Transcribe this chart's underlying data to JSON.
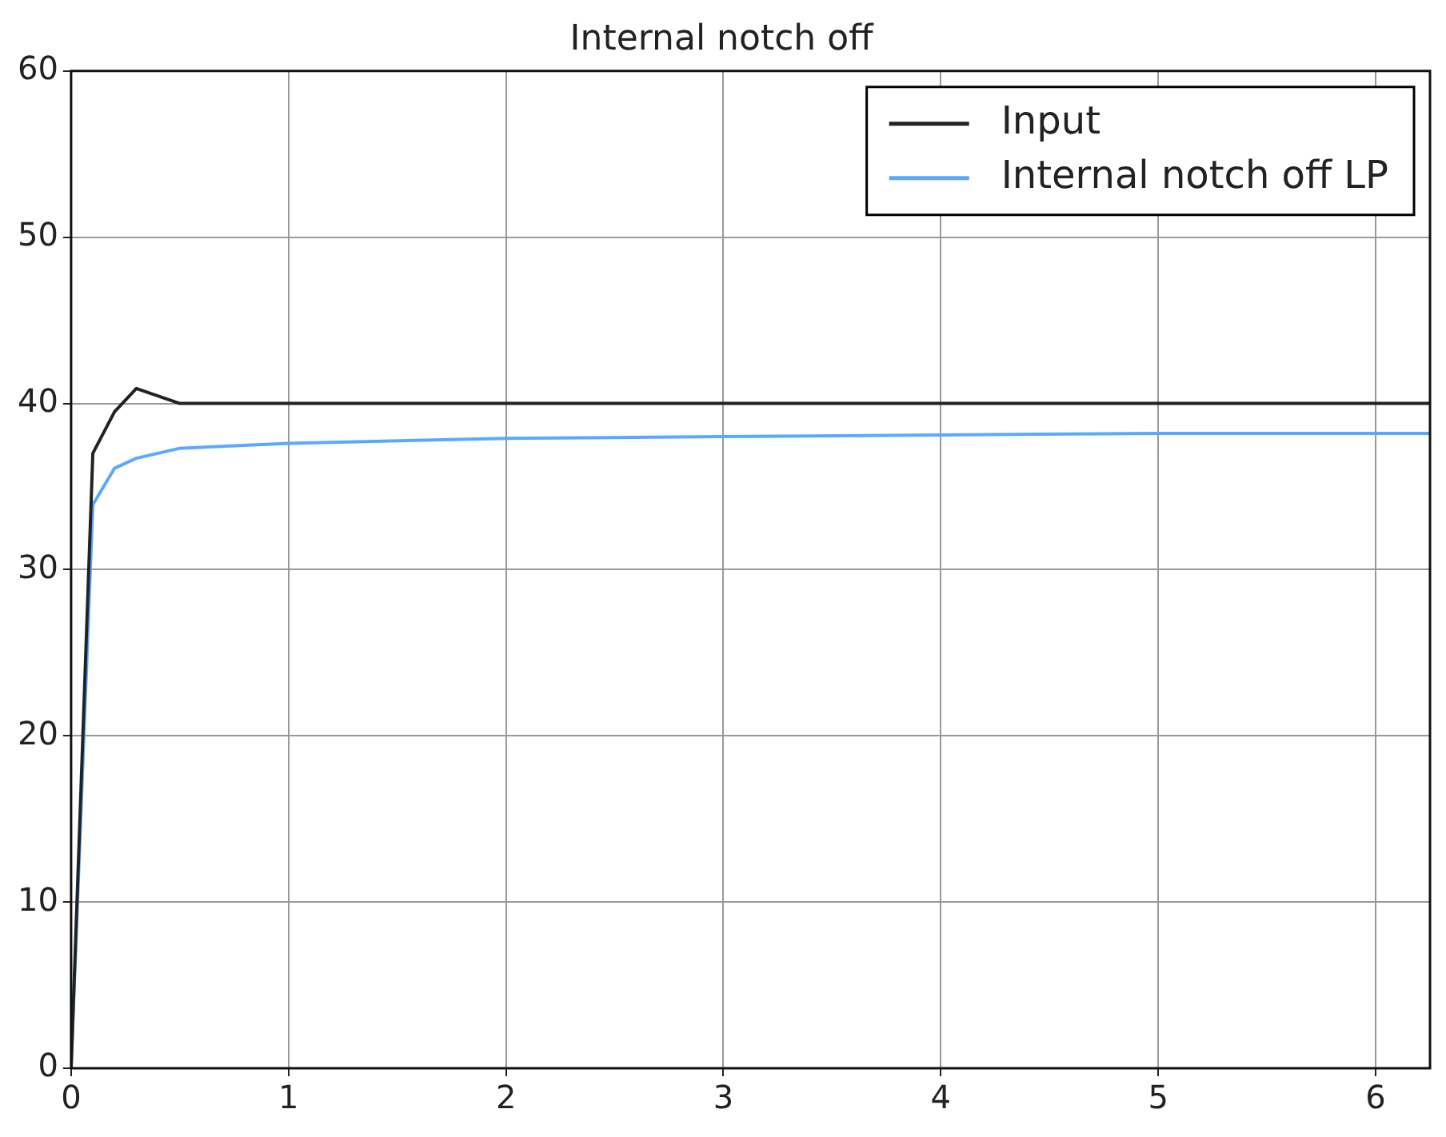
{
  "chart_data": {
    "type": "line",
    "title": "Internal notch off",
    "series": [
      {
        "name": "Input",
        "color": "#222222",
        "x": [
          0,
          0.1,
          0.2,
          0.3,
          0.5,
          1,
          2,
          3,
          4,
          5,
          6,
          6.25
        ],
        "values": [
          0,
          37,
          39.5,
          40.9,
          40,
          40,
          40,
          40,
          40,
          40,
          40,
          40
        ]
      },
      {
        "name": "Internal notch off LP",
        "color": "#5aa9ff",
        "x": [
          0,
          0.1,
          0.2,
          0.3,
          0.5,
          1,
          2,
          3,
          4,
          5,
          6,
          6.25
        ],
        "values": [
          0,
          33.9,
          36.1,
          36.7,
          37.3,
          37.6,
          37.9,
          38.0,
          38.1,
          38.2,
          38.2,
          38.2
        ]
      }
    ],
    "xlim": [
      0,
      6.25
    ],
    "xticks": [
      0,
      1,
      2,
      3,
      4,
      5,
      6
    ],
    "ylim": [
      0,
      60
    ],
    "yticks": [
      0,
      10,
      20,
      30,
      40,
      50,
      60
    ],
    "grid": true,
    "legend": "top right",
    "marker": "none",
    "line_style": "solid"
  }
}
